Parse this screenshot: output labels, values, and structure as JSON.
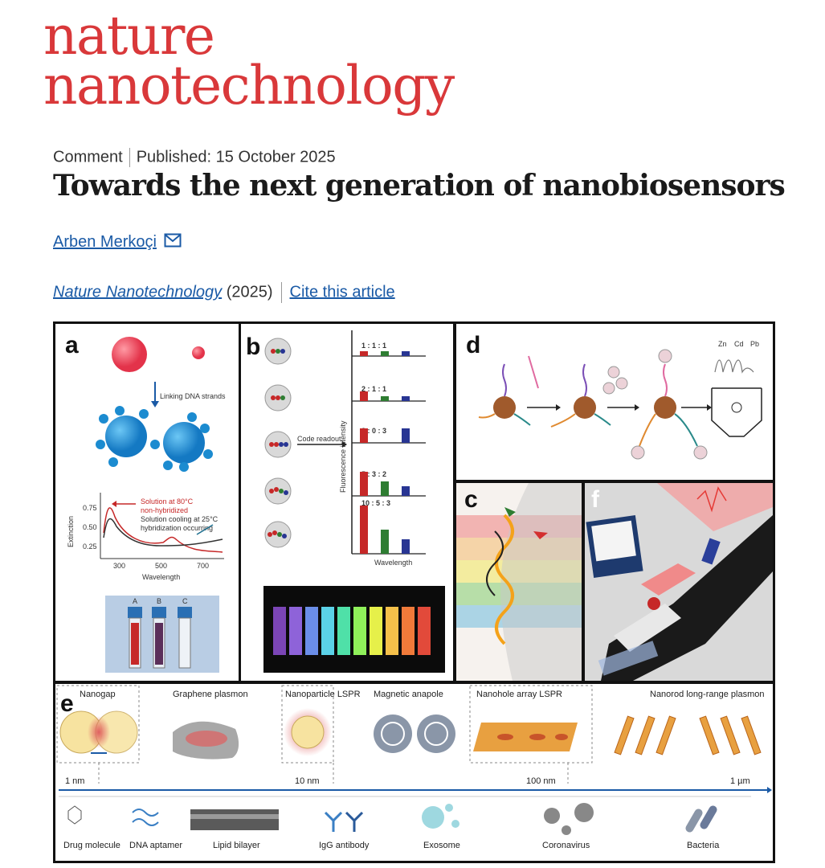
{
  "journal_logo": {
    "line1": "nature",
    "line2": "nanotechnology"
  },
  "article": {
    "type": "Comment",
    "published": "Published: 15 October 2025",
    "title": "Towards the next generation of nanobiosensors",
    "author": "Arben Merkoçi",
    "journal_name": "Nature Nanotechnology",
    "year": "(2025)",
    "cite": "Cite this article"
  },
  "figure": {
    "panel_a": {
      "label": "a",
      "arrow_text": "Linking DNA strands",
      "legend_1a": "Solution at 80°C",
      "legend_1b": "non-hybridized",
      "legend_2a": "Solution cooling at 25°C",
      "legend_2b": "hybridization occurring",
      "ylabel": "Extinction",
      "xlabel": "Wavelength",
      "yticks": [
        "0.75",
        "0.50",
        "0.25"
      ],
      "xticks": [
        "300",
        "500",
        "700"
      ],
      "vials": [
        "A",
        "B",
        "C"
      ]
    },
    "panel_b": {
      "label": "b",
      "readout": "Code readout",
      "ylabel": "Fluorescence intensity",
      "xlabel": "Wavelength",
      "ratios": [
        "1 : 1 : 1",
        "2 : 1 : 1",
        "3 : 0 : 3",
        "5 : 3 : 2",
        "10 : 5 : 3"
      ]
    },
    "panel_d": {
      "label": "d",
      "metals": [
        "Zn",
        "Cd",
        "Pb"
      ]
    },
    "panel_c": {
      "label": "c"
    },
    "panel_f": {
      "label": "f"
    },
    "panel_e": {
      "label": "e",
      "top": [
        "Nanogap",
        "Graphene plasmon",
        "Nanoparticle LSPR",
        "Magnetic anapole",
        "Nanohole array LSPR",
        "Nanorod long-range plasmon"
      ],
      "scale": [
        "1 nm",
        "10 nm",
        "100 nm",
        "1 µm"
      ],
      "bottom": [
        "Drug molecule",
        "DNA aptamer",
        "Lipid bilayer",
        "IgG antibody",
        "Exosome",
        "Coronavirus",
        "Bacteria"
      ]
    }
  },
  "colors": {
    "brand_red": "#d9383a",
    "link_blue": "#1a5aa6"
  }
}
